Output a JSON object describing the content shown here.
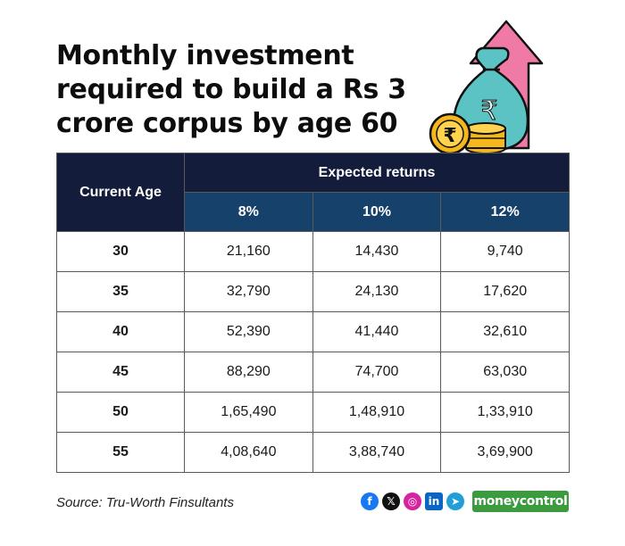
{
  "title": {
    "line1": "Monthly investment",
    "line2": "required to build a Rs 3",
    "line3": "crore corpus by age 60"
  },
  "illustration": {
    "coin_symbol": "₹",
    "bag_symbol": "₹",
    "icon": "money-bag-coins-arrow-icon"
  },
  "table": {
    "age_header": "Current Age",
    "group_header": "Expected returns",
    "rates": [
      "8%",
      "10%",
      "12%"
    ],
    "rows": [
      {
        "age": "30",
        "values": [
          "21,160",
          "14,430",
          "9,740"
        ]
      },
      {
        "age": "35",
        "values": [
          "32,790",
          "24,130",
          "17,620"
        ]
      },
      {
        "age": "40",
        "values": [
          "52,390",
          "41,440",
          "32,610"
        ]
      },
      {
        "age": "45",
        "values": [
          "88,290",
          "74,700",
          "63,030"
        ]
      },
      {
        "age": "50",
        "values": [
          "1,65,490",
          "1,48,910",
          "1,33,910"
        ]
      },
      {
        "age": "55",
        "values": [
          "4,08,640",
          "3,88,740",
          "3,69,900"
        ]
      }
    ]
  },
  "source": "Source: Tru-Worth Finsultants",
  "social": {
    "icons": [
      "facebook-icon",
      "x-icon",
      "instagram-icon",
      "linkedin-icon",
      "telegram-icon"
    ],
    "glyphs": [
      "f",
      "𝕏",
      "◎",
      "in",
      "➤"
    ],
    "colors": [
      "#1877f2",
      "#111111",
      "#d6249f",
      "#0a66c2",
      "#229ed9"
    ]
  },
  "brand": "moneycontrol",
  "colors": {
    "header_dark": "#141c3c",
    "header_rate": "#16416a",
    "brand": "#3c9a3f",
    "arrow": "#f07aa6",
    "bag": "#5bc3c3",
    "coin": "#f5b81c"
  }
}
